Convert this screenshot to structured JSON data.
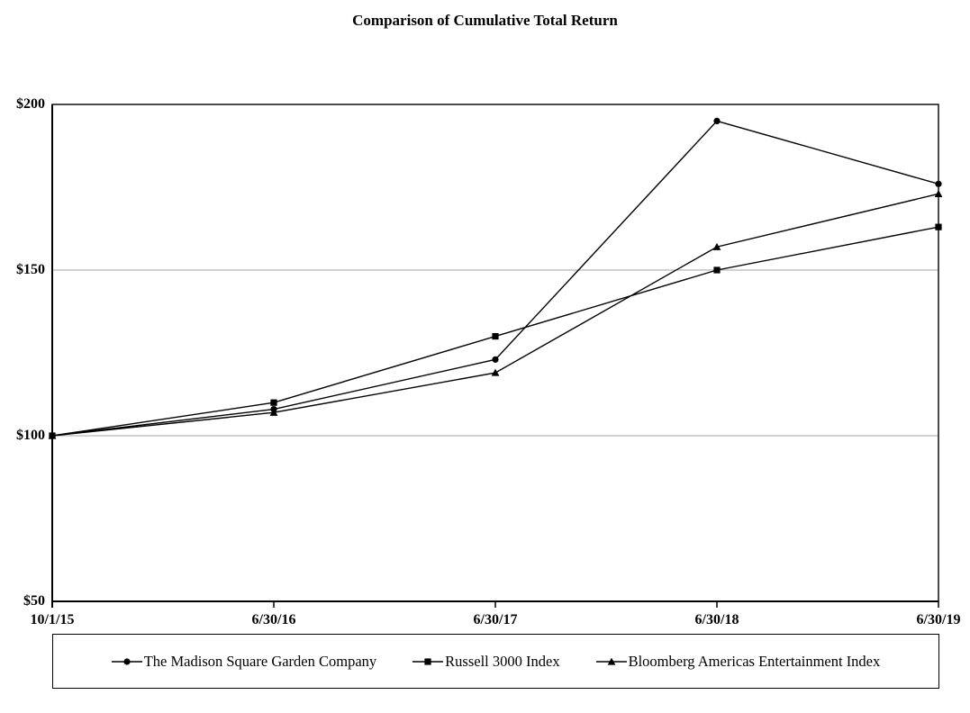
{
  "title": "Comparison of Cumulative Total Return",
  "colors": {
    "line": "#000000",
    "marker": "#000000",
    "grid": "#a6a6a6",
    "axis": "#000000",
    "text": "#000000",
    "background": "#ffffff"
  },
  "chart_data": {
    "type": "line",
    "title": "Comparison of Cumulative Total Return",
    "xlabel": "",
    "ylabel": "",
    "x_labels": [
      "10/1/15",
      "6/30/16",
      "6/30/17",
      "6/30/18",
      "6/30/19"
    ],
    "y_tick_values": [
      50,
      100,
      150,
      200
    ],
    "y_tick_labels": [
      "$50",
      "$100",
      "$150",
      "$200"
    ],
    "ylim": [
      50,
      200
    ],
    "gridline_values": [
      100,
      150
    ],
    "grid": true,
    "legend_position": "bottom",
    "series": [
      {
        "name": "The Madison Square Garden Company",
        "marker": "circle",
        "values": [
          100,
          108,
          123,
          195,
          176
        ]
      },
      {
        "name": "Russell 3000 Index",
        "marker": "square",
        "values": [
          100,
          110,
          130,
          150,
          163
        ]
      },
      {
        "name": "Bloomberg Americas Entertainment Index",
        "marker": "triangle",
        "values": [
          100,
          107,
          119,
          157,
          173
        ]
      }
    ]
  }
}
